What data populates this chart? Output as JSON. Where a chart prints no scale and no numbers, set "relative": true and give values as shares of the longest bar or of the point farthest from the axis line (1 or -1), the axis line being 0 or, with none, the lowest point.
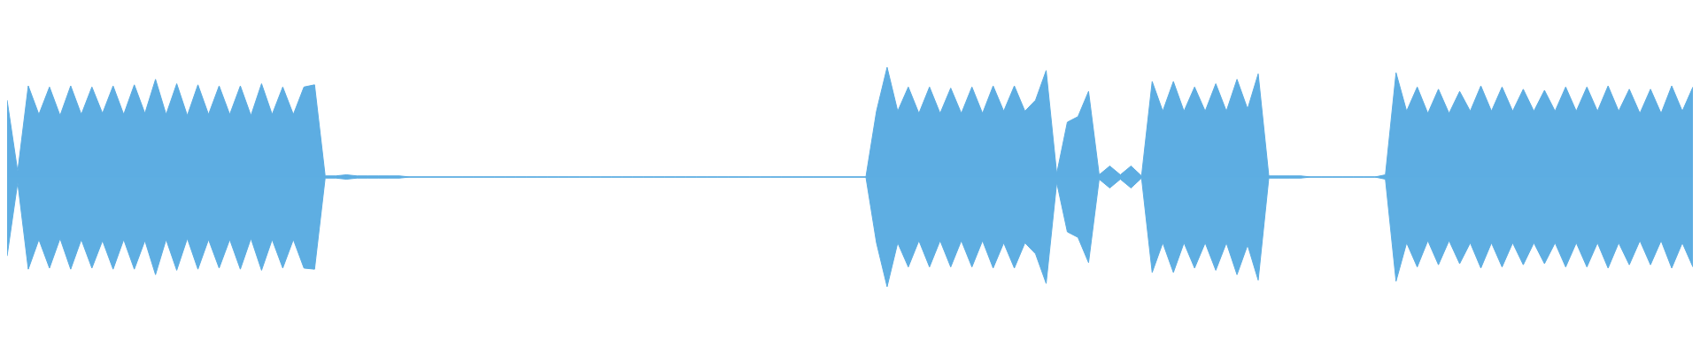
{
  "chart_data": {
    "type": "area",
    "relative": true,
    "tick_labels": false,
    "ref_lines": [
      {
        "axis": "y",
        "value": 0,
        "color": "#5dade2"
      }
    ],
    "categories": [
      null,
      null,
      null,
      null,
      null,
      null,
      null,
      null,
      null,
      null,
      null,
      null,
      null,
      null,
      null,
      null,
      null,
      null,
      null,
      null,
      null,
      null,
      null,
      null,
      null,
      null,
      null,
      null,
      null,
      null,
      null,
      null,
      null,
      null,
      null,
      null,
      null,
      null,
      null,
      null,
      null,
      null,
      null,
      null,
      null,
      null,
      null,
      null,
      null,
      null,
      null,
      null,
      null,
      null,
      null,
      null,
      null,
      null,
      null,
      null,
      null,
      null,
      null,
      null,
      null,
      null,
      null,
      null,
      null,
      null,
      null,
      null,
      null,
      null,
      null,
      null,
      null,
      null,
      null,
      null,
      null,
      null,
      null,
      null,
      null,
      null,
      null,
      null,
      null,
      null,
      null,
      null,
      null,
      null,
      null,
      null,
      null,
      null,
      null,
      null,
      null,
      null,
      null,
      null,
      null,
      null,
      null,
      null,
      null,
      null,
      null,
      null,
      null,
      null,
      null,
      null,
      null,
      null,
      null,
      null,
      null,
      null,
      null,
      null,
      null,
      null,
      null,
      null,
      null,
      null,
      null,
      null,
      null,
      null,
      null,
      null,
      null,
      null,
      null,
      null,
      null,
      null,
      null,
      null,
      null,
      null,
      null,
      null,
      null,
      null,
      null,
      null,
      null,
      null,
      null,
      null,
      null,
      null,
      null,
      null
    ],
    "series": [
      {
        "color": "#5dade2",
        "values": [
          0.7,
          0.05,
          0.83,
          0.57,
          0.82,
          0.56,
          0.83,
          0.57,
          0.82,
          0.58,
          0.83,
          0.57,
          0.84,
          0.58,
          0.89,
          0.57,
          0.85,
          0.56,
          0.84,
          0.57,
          0.83,
          0.57,
          0.83,
          0.56,
          0.85,
          0.57,
          0.82,
          0.57,
          0.82,
          0.84,
          0.01,
          0.01,
          0.02,
          0.01,
          0.01,
          0.01,
          0.01,
          0.01,
          0,
          0,
          0,
          0,
          0,
          0,
          0,
          0,
          0,
          0,
          0,
          0,
          0,
          0,
          0,
          0,
          0,
          0,
          0,
          0,
          0,
          0,
          0,
          0,
          0,
          0,
          0,
          0,
          0,
          0,
          0,
          0,
          0,
          0,
          0,
          0,
          0,
          0,
          0,
          0,
          0,
          0,
          0,
          0,
          0.6,
          1,
          0.6,
          0.82,
          0.58,
          0.82,
          0.58,
          0.81,
          0.58,
          0.82,
          0.58,
          0.83,
          0.6,
          0.83,
          0.6,
          0.7,
          0.97,
          0.03,
          0.5,
          0.55,
          0.78,
          0.02,
          0.1,
          0.02,
          0.1,
          0.01,
          0.87,
          0.6,
          0.87,
          0.6,
          0.82,
          0.6,
          0.85,
          0.6,
          0.89,
          0.62,
          0.94,
          0.01,
          0.01,
          0.01,
          0.01,
          0,
          0,
          0,
          0,
          0,
          0,
          0,
          0.02,
          0.95,
          0.6,
          0.82,
          0.58,
          0.8,
          0.58,
          0.78,
          0.6,
          0.83,
          0.6,
          0.82,
          0.6,
          0.8,
          0.6,
          0.79,
          0.6,
          0.82,
          0.6,
          0.82,
          0.6,
          0.83,
          0.6,
          0.8,
          0.58,
          0.8,
          0.58,
          0.83,
          0.6,
          0.82
        ]
      },
      {
        "color": "#5eaee2",
        "values": [
          -0.72,
          -0.05,
          -0.84,
          -0.57,
          -0.83,
          -0.56,
          -0.84,
          -0.57,
          -0.83,
          -0.58,
          -0.84,
          -0.57,
          -0.84,
          -0.58,
          -0.89,
          -0.57,
          -0.85,
          -0.56,
          -0.84,
          -0.57,
          -0.83,
          -0.57,
          -0.84,
          -0.56,
          -0.85,
          -0.57,
          -0.83,
          -0.57,
          -0.83,
          -0.84,
          -0.01,
          -0.01,
          -0.02,
          -0.01,
          -0.01,
          -0.01,
          -0.01,
          -0.01,
          0,
          0,
          0,
          0,
          0,
          0,
          0,
          0,
          0,
          0,
          0,
          0,
          0,
          0,
          0,
          0,
          0,
          0,
          0,
          0,
          0,
          0,
          0,
          0,
          0,
          0,
          0,
          0,
          0,
          0,
          0,
          0,
          0,
          0,
          0,
          0,
          0,
          0,
          0,
          0,
          0,
          0,
          0,
          0,
          -0.6,
          -1,
          -0.6,
          -0.82,
          -0.58,
          -0.82,
          -0.58,
          -0.82,
          -0.58,
          -0.82,
          -0.58,
          -0.83,
          -0.6,
          -0.83,
          -0.6,
          -0.7,
          -0.97,
          -0.05,
          -0.5,
          -0.55,
          -0.78,
          -0.02,
          -0.1,
          -0.02,
          -0.1,
          -0.01,
          -0.87,
          -0.6,
          -0.87,
          -0.6,
          -0.83,
          -0.6,
          -0.85,
          -0.6,
          -0.89,
          -0.62,
          -0.94,
          -0.01,
          -0.01,
          -0.01,
          -0.01,
          0,
          0,
          0,
          0,
          0,
          0,
          0,
          -0.02,
          -0.95,
          -0.6,
          -0.82,
          -0.58,
          -0.8,
          -0.58,
          -0.79,
          -0.6,
          -0.83,
          -0.6,
          -0.82,
          -0.6,
          -0.8,
          -0.6,
          -0.79,
          -0.6,
          -0.82,
          -0.6,
          -0.82,
          -0.6,
          -0.83,
          -0.6,
          -0.8,
          -0.58,
          -0.8,
          -0.58,
          -0.83,
          -0.6,
          -0.82
        ]
      }
    ]
  }
}
